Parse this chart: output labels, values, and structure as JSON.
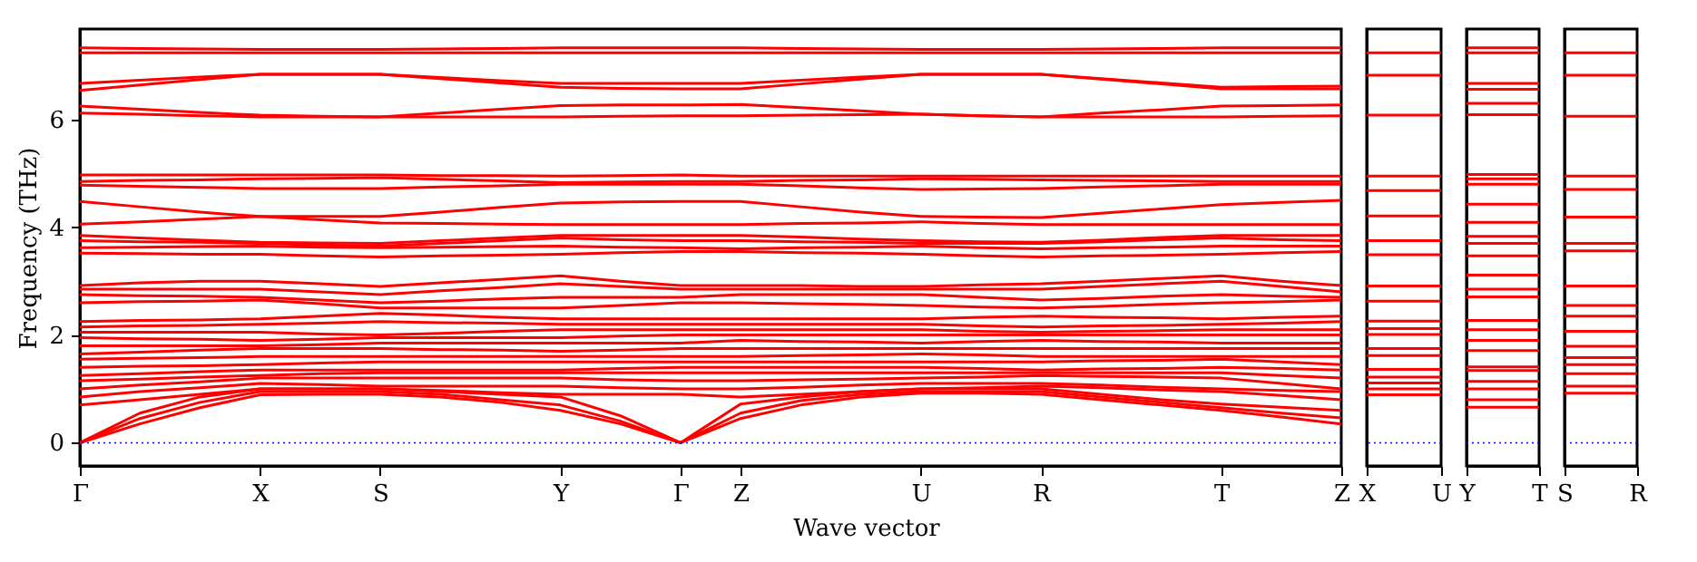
{
  "chart_data": [
    {
      "type": "line",
      "xlabel": "Wave vector",
      "ylabel": "Frequency (THz)",
      "categories": [
        "Γ",
        null,
        null,
        "X",
        null,
        "S",
        null,
        null,
        "Y",
        null,
        "Γ",
        "Z",
        null,
        null,
        "U",
        null,
        "R",
        null,
        null,
        "T",
        null,
        "Z"
      ],
      "ylim": [
        -0.43,
        7.68
      ],
      "yticks": [
        0,
        2,
        4,
        6
      ],
      "ref_lines": [
        {
          "axis": "y",
          "value": 0,
          "color": "#0000ff",
          "line_style": "dotted"
        }
      ],
      "series": [
        {
          "color": "#ff0000",
          "values": [
            0,
            0.35,
            0.65,
            0.89,
            0.9,
            0.9,
            0.85,
            0.75,
            0.6,
            0.35,
            0,
            0.45,
            0.7,
            0.85,
            0.92,
            0.92,
            0.9,
            0.8,
            0.7,
            0.6,
            0.48,
            0.35
          ]
        },
        {
          "color": "#ff0000",
          "values": [
            0,
            0.45,
            0.75,
            0.95,
            0.95,
            0.95,
            0.9,
            0.8,
            0.7,
            0.4,
            0,
            0.55,
            0.78,
            0.9,
            0.95,
            0.95,
            0.95,
            0.85,
            0.75,
            0.65,
            0.55,
            0.46
          ]
        },
        {
          "color": "#ff0000",
          "values": [
            0,
            0.55,
            0.85,
            1.0,
            1.0,
            1.0,
            0.95,
            0.9,
            0.85,
            0.5,
            0,
            0.72,
            0.85,
            0.95,
            1.0,
            1.0,
            1.0,
            0.9,
            0.8,
            0.72,
            0.66,
            0.6
          ]
        },
        {
          "color": "#ff0000",
          "values": [
            0.7,
            0.8,
            0.9,
            1.0,
            1.0,
            1.0,
            0.97,
            0.93,
            0.9,
            0.9,
            0.9,
            0.85,
            0.9,
            0.95,
            1.0,
            1.02,
            1.05,
            1.02,
            0.98,
            0.95,
            0.88,
            0.8
          ]
        },
        {
          "color": "#ff0000",
          "values": [
            0.85,
            0.95,
            1.02,
            1.1,
            1.08,
            1.05,
            1.05,
            1.05,
            1.05,
            1.02,
            1.0,
            1.0,
            1.03,
            1.07,
            1.1,
            1.1,
            1.1,
            1.07,
            1.03,
            1.0,
            0.97,
            0.95
          ]
        },
        {
          "color": "#ff0000",
          "values": [
            1.0,
            1.07,
            1.13,
            1.2,
            1.2,
            1.2,
            1.2,
            1.2,
            1.2,
            1.17,
            1.15,
            1.15,
            1.17,
            1.18,
            1.2,
            1.22,
            1.25,
            1.23,
            1.22,
            1.2,
            1.1,
            1.0
          ]
        },
        {
          "color": "#ff0000",
          "values": [
            1.15,
            1.18,
            1.22,
            1.25,
            1.28,
            1.3,
            1.3,
            1.3,
            1.3,
            1.3,
            1.3,
            1.3,
            1.3,
            1.3,
            1.3,
            1.3,
            1.3,
            1.3,
            1.3,
            1.3,
            1.25,
            1.2
          ]
        },
        {
          "color": "#ff0000",
          "values": [
            1.25,
            1.28,
            1.32,
            1.35,
            1.35,
            1.35,
            1.35,
            1.35,
            1.35,
            1.38,
            1.4,
            1.4,
            1.4,
            1.4,
            1.4,
            1.38,
            1.35,
            1.37,
            1.38,
            1.4,
            1.38,
            1.35
          ]
        },
        {
          "color": "#ff0000",
          "values": [
            1.4,
            1.42,
            1.43,
            1.45,
            1.48,
            1.5,
            1.5,
            1.5,
            1.5,
            1.5,
            1.5,
            1.5,
            1.5,
            1.5,
            1.5,
            1.5,
            1.5,
            1.52,
            1.53,
            1.55,
            1.5,
            1.45
          ]
        },
        {
          "color": "#ff0000",
          "values": [
            1.55,
            1.57,
            1.58,
            1.6,
            1.6,
            1.6,
            1.6,
            1.6,
            1.6,
            1.6,
            1.6,
            1.6,
            1.62,
            1.63,
            1.65,
            1.63,
            1.6,
            1.6,
            1.6,
            1.6,
            1.6,
            1.6
          ]
        },
        {
          "color": "#ff0000",
          "values": [
            1.65,
            1.68,
            1.72,
            1.75,
            1.75,
            1.75,
            1.73,
            1.72,
            1.7,
            1.72,
            1.75,
            1.75,
            1.75,
            1.75,
            1.75,
            1.75,
            1.75,
            1.75,
            1.75,
            1.75,
            1.75,
            1.75
          ]
        },
        {
          "color": "#ff0000",
          "values": [
            1.8,
            1.8,
            1.8,
            1.8,
            1.82,
            1.85,
            1.85,
            1.85,
            1.85,
            1.85,
            1.85,
            1.9,
            1.88,
            1.87,
            1.85,
            1.88,
            1.9,
            1.88,
            1.87,
            1.85,
            1.85,
            1.85
          ]
        },
        {
          "color": "#ff0000",
          "values": [
            1.95,
            1.93,
            1.92,
            1.9,
            1.92,
            1.95,
            1.95,
            1.95,
            1.95,
            1.98,
            2.0,
            2.0,
            2.0,
            2.0,
            2.0,
            2.0,
            2.0,
            2.0,
            2.0,
            2.0,
            2.0,
            2.0
          ]
        },
        {
          "color": "#ff0000",
          "values": [
            2.05,
            2.05,
            2.05,
            2.05,
            2.02,
            2.0,
            2.03,
            2.07,
            2.1,
            2.1,
            2.1,
            2.1,
            2.1,
            2.1,
            2.1,
            2.07,
            2.05,
            2.07,
            2.08,
            2.1,
            2.1,
            2.1
          ]
        },
        {
          "color": "#ff0000",
          "values": [
            2.15,
            2.17,
            2.18,
            2.2,
            2.22,
            2.25,
            2.23,
            2.22,
            2.2,
            2.2,
            2.2,
            2.2,
            2.2,
            2.2,
            2.2,
            2.17,
            2.15,
            2.17,
            2.18,
            2.2,
            2.22,
            2.25
          ]
        },
        {
          "color": "#ff0000",
          "values": [
            2.25,
            2.27,
            2.28,
            2.3,
            2.35,
            2.4,
            2.37,
            2.33,
            2.3,
            2.3,
            2.3,
            2.3,
            2.3,
            2.3,
            2.3,
            2.33,
            2.35,
            2.33,
            2.32,
            2.3,
            2.33,
            2.35
          ]
        },
        {
          "color": "#ff0000",
          "values": [
            2.6,
            2.62,
            2.63,
            2.65,
            2.58,
            2.5,
            2.5,
            2.5,
            2.5,
            2.55,
            2.6,
            2.6,
            2.58,
            2.57,
            2.55,
            2.52,
            2.5,
            2.53,
            2.57,
            2.6,
            2.62,
            2.65
          ]
        },
        {
          "color": "#ff0000",
          "values": [
            2.75,
            2.73,
            2.72,
            2.7,
            2.65,
            2.6,
            2.63,
            2.67,
            2.7,
            2.7,
            2.7,
            2.75,
            2.75,
            2.75,
            2.75,
            2.7,
            2.65,
            2.68,
            2.72,
            2.75,
            2.72,
            2.7
          ]
        },
        {
          "color": "#ff0000",
          "values": [
            2.85,
            2.85,
            2.85,
            2.85,
            2.8,
            2.75,
            2.82,
            2.88,
            2.95,
            2.9,
            2.85,
            2.85,
            2.85,
            2.85,
            2.85,
            2.85,
            2.85,
            2.9,
            2.95,
            3.0,
            2.9,
            2.8
          ]
        },
        {
          "color": "#ff0000",
          "values": [
            2.92,
            2.97,
            3.0,
            3.0,
            2.95,
            2.9,
            2.97,
            3.03,
            3.1,
            3.0,
            2.92,
            2.92,
            2.92,
            2.9,
            2.9,
            2.93,
            2.95,
            3.0,
            3.05,
            3.1,
            3.0,
            2.92
          ]
        },
        {
          "color": "#ff0000",
          "values": [
            3.52,
            3.51,
            3.5,
            3.5,
            3.47,
            3.45,
            3.47,
            3.48,
            3.5,
            3.53,
            3.55,
            3.55,
            3.53,
            3.52,
            3.5,
            3.47,
            3.45,
            3.47,
            3.48,
            3.5,
            3.53,
            3.55
          ]
        },
        {
          "color": "#ff0000",
          "values": [
            3.62,
            3.63,
            3.64,
            3.65,
            3.63,
            3.62,
            3.63,
            3.64,
            3.65,
            3.63,
            3.62,
            3.6,
            3.62,
            3.63,
            3.65,
            3.62,
            3.6,
            3.62,
            3.63,
            3.65,
            3.65,
            3.65
          ]
        },
        {
          "color": "#ff0000",
          "values": [
            3.75,
            3.73,
            3.72,
            3.7,
            3.67,
            3.65,
            3.7,
            3.75,
            3.8,
            3.77,
            3.75,
            3.75,
            3.73,
            3.72,
            3.7,
            3.7,
            3.7,
            3.73,
            3.77,
            3.8,
            3.77,
            3.75
          ]
        },
        {
          "color": "#ff0000",
          "values": [
            3.85,
            3.8,
            3.76,
            3.72,
            3.71,
            3.7,
            3.75,
            3.8,
            3.85,
            3.85,
            3.85,
            3.85,
            3.82,
            3.78,
            3.75,
            3.73,
            3.72,
            3.76,
            3.81,
            3.85,
            3.85,
            3.85
          ]
        },
        {
          "color": "#ff0000",
          "values": [
            4.06,
            4.1,
            4.15,
            4.2,
            4.14,
            4.08,
            4.07,
            4.06,
            4.05,
            4.05,
            4.05,
            4.05,
            4.07,
            4.08,
            4.1,
            4.07,
            4.05,
            4.05,
            4.05,
            4.05,
            4.05,
            4.05
          ]
        },
        {
          "color": "#ff0000",
          "values": [
            4.48,
            4.38,
            4.28,
            4.2,
            4.2,
            4.2,
            4.28,
            4.37,
            4.45,
            4.47,
            4.48,
            4.48,
            4.38,
            4.28,
            4.2,
            4.19,
            4.18,
            4.26,
            4.34,
            4.42,
            4.46,
            4.5
          ]
        },
        {
          "color": "#ff0000",
          "values": [
            4.78,
            4.76,
            4.74,
            4.72,
            4.72,
            4.72,
            4.75,
            4.77,
            4.8,
            4.8,
            4.8,
            4.8,
            4.77,
            4.73,
            4.7,
            4.71,
            4.72,
            4.75,
            4.77,
            4.8,
            4.8,
            4.8
          ]
        },
        {
          "color": "#ff0000",
          "values": [
            4.85,
            4.87,
            4.88,
            4.9,
            4.91,
            4.92,
            4.89,
            4.86,
            4.83,
            4.84,
            4.85,
            4.85,
            4.87,
            4.88,
            4.9,
            4.89,
            4.88,
            4.87,
            4.86,
            4.85,
            4.85,
            4.85
          ]
        },
        {
          "color": "#ff0000",
          "values": [
            4.97,
            4.97,
            4.97,
            4.97,
            4.97,
            4.97,
            4.96,
            4.96,
            4.95,
            4.96,
            4.97,
            4.95,
            4.95,
            4.95,
            4.95,
            4.95,
            4.95,
            4.95,
            4.95,
            4.95,
            4.95,
            4.95
          ]
        },
        {
          "color": "#ff0000",
          "values": [
            6.12,
            6.1,
            6.07,
            6.05,
            6.05,
            6.05,
            6.05,
            6.05,
            6.05,
            6.06,
            6.07,
            6.07,
            6.08,
            6.09,
            6.1,
            6.07,
            6.05,
            6.05,
            6.05,
            6.05,
            6.06,
            6.07
          ]
        },
        {
          "color": "#ff0000",
          "values": [
            6.25,
            6.19,
            6.13,
            6.08,
            6.06,
            6.05,
            6.12,
            6.19,
            6.26,
            6.27,
            6.27,
            6.28,
            6.22,
            6.16,
            6.1,
            6.07,
            6.05,
            6.12,
            6.18,
            6.25,
            6.26,
            6.27
          ]
        },
        {
          "color": "#ff0000",
          "values": [
            6.54,
            6.64,
            6.74,
            6.84,
            6.84,
            6.84,
            6.76,
            6.68,
            6.6,
            6.58,
            6.57,
            6.57,
            6.66,
            6.75,
            6.84,
            6.84,
            6.84,
            6.75,
            6.66,
            6.57,
            6.57,
            6.57
          ]
        },
        {
          "color": "#ff0000",
          "values": [
            6.67,
            6.73,
            6.79,
            6.84,
            6.84,
            6.84,
            6.78,
            6.72,
            6.67,
            6.67,
            6.67,
            6.67,
            6.73,
            6.79,
            6.84,
            6.84,
            6.84,
            6.76,
            6.68,
            6.6,
            6.61,
            6.62
          ]
        },
        {
          "color": "#ff0000",
          "values": [
            7.24,
            7.24,
            7.24,
            7.24,
            7.24,
            7.24,
            7.24,
            7.24,
            7.24,
            7.24,
            7.24,
            7.24,
            7.24,
            7.24,
            7.24,
            7.24,
            7.24,
            7.24,
            7.24,
            7.24,
            7.24,
            7.24
          ]
        },
        {
          "color": "#ff0000",
          "values": [
            7.33,
            7.32,
            7.31,
            7.3,
            7.3,
            7.3,
            7.31,
            7.32,
            7.33,
            7.33,
            7.33,
            7.33,
            7.32,
            7.31,
            7.3,
            7.3,
            7.3,
            7.31,
            7.32,
            7.33,
            7.33,
            7.33
          ]
        }
      ]
    },
    {
      "type": "line",
      "categories": [
        "X",
        "U"
      ],
      "ylim": [
        -0.43,
        7.68
      ],
      "yticks": [
        0,
        2,
        4,
        6
      ],
      "tick_labels": "x",
      "ref_lines": [
        {
          "axis": "y",
          "value": 0,
          "color": "#0000ff",
          "line_style": "dotted"
        }
      ],
      "series": [
        {
          "color": "#ff0000",
          "values": [
            7.24,
            7.24
          ]
        },
        {
          "color": "#ff0000",
          "values": [
            6.82,
            6.82
          ]
        },
        {
          "color": "#ff0000",
          "values": [
            6.08,
            6.08
          ]
        },
        {
          "color": "#ff0000",
          "values": [
            4.95,
            4.95
          ]
        },
        {
          "color": "#ff0000",
          "values": [
            4.68,
            4.68
          ]
        },
        {
          "color": "#ff0000",
          "values": [
            4.21,
            4.21
          ]
        },
        {
          "color": "#ff0000",
          "values": [
            3.75,
            3.75
          ]
        },
        {
          "color": "#ff0000",
          "values": [
            3.49,
            3.49
          ]
        },
        {
          "color": "#ff0000",
          "values": [
            2.91,
            2.91
          ]
        },
        {
          "color": "#ff0000",
          "values": [
            2.63,
            2.63
          ]
        },
        {
          "color": "#ff0000",
          "values": [
            2.26,
            2.26
          ]
        },
        {
          "color": "#ff0000",
          "values": [
            2.12,
            2.12
          ]
        },
        {
          "color": "#ff0000",
          "values": [
            2.01,
            2.01
          ]
        },
        {
          "color": "#ff0000",
          "values": [
            1.75,
            1.75
          ]
        },
        {
          "color": "#ff0000",
          "values": [
            1.62,
            1.62
          ]
        },
        {
          "color": "#ff0000",
          "values": [
            1.36,
            1.36
          ]
        },
        {
          "color": "#ff0000",
          "values": [
            1.22,
            1.22
          ]
        },
        {
          "color": "#ff0000",
          "values": [
            1.11,
            1.11
          ]
        },
        {
          "color": "#ff0000",
          "values": [
            1.0,
            1.0
          ]
        },
        {
          "color": "#ff0000",
          "values": [
            0.89,
            0.89
          ]
        }
      ]
    },
    {
      "type": "line",
      "categories": [
        "Y",
        "T"
      ],
      "ylim": [
        -0.43,
        7.68
      ],
      "yticks": [
        0,
        2,
        4,
        6
      ],
      "tick_labels": "x",
      "ref_lines": [
        {
          "axis": "y",
          "value": 0,
          "color": "#0000ff",
          "line_style": "dotted"
        }
      ],
      "series": [
        {
          "color": "#ff0000",
          "values": [
            7.33,
            7.33
          ]
        },
        {
          "color": "#ff0000",
          "values": [
            7.24,
            7.24
          ]
        },
        {
          "color": "#ff0000",
          "values": [
            6.67,
            6.67
          ]
        },
        {
          "color": "#ff0000",
          "values": [
            6.56,
            6.56
          ]
        },
        {
          "color": "#ff0000",
          "values": [
            6.3,
            6.3
          ]
        },
        {
          "color": "#ff0000",
          "values": [
            6.09,
            6.09
          ]
        },
        {
          "color": "#ff0000",
          "values": [
            4.98,
            4.98
          ]
        },
        {
          "color": "#ff0000",
          "values": [
            4.9,
            4.9
          ]
        },
        {
          "color": "#ff0000",
          "values": [
            4.8,
            4.8
          ]
        },
        {
          "color": "#ff0000",
          "values": [
            4.43,
            4.43
          ]
        },
        {
          "color": "#ff0000",
          "values": [
            4.09,
            4.09
          ]
        },
        {
          "color": "#ff0000",
          "values": [
            3.83,
            3.83
          ]
        },
        {
          "color": "#ff0000",
          "values": [
            3.7,
            3.7
          ]
        },
        {
          "color": "#ff0000",
          "values": [
            3.47,
            3.47
          ]
        },
        {
          "color": "#ff0000",
          "values": [
            3.11,
            3.11
          ]
        },
        {
          "color": "#ff0000",
          "values": [
            2.85,
            2.85
          ]
        },
        {
          "color": "#ff0000",
          "values": [
            2.71,
            2.71
          ]
        },
        {
          "color": "#ff0000",
          "values": [
            2.27,
            2.27
          ]
        },
        {
          "color": "#ff0000",
          "values": [
            2.1,
            2.1
          ]
        },
        {
          "color": "#ff0000",
          "values": [
            1.9,
            1.9
          ]
        },
        {
          "color": "#ff0000",
          "values": [
            1.71,
            1.71
          ]
        },
        {
          "color": "#ff0000",
          "values": [
            1.41,
            1.41
          ]
        },
        {
          "color": "#ff0000",
          "values": [
            1.34,
            1.34
          ]
        },
        {
          "color": "#ff0000",
          "values": [
            1.14,
            1.14
          ]
        },
        {
          "color": "#ff0000",
          "values": [
            1.0,
            1.0
          ]
        },
        {
          "color": "#ff0000",
          "values": [
            0.8,
            0.8
          ]
        },
        {
          "color": "#ff0000",
          "values": [
            0.66,
            0.66
          ]
        }
      ]
    },
    {
      "type": "line",
      "categories": [
        "S",
        "R"
      ],
      "ylim": [
        -0.43,
        7.68
      ],
      "yticks": [
        0,
        2,
        4,
        6
      ],
      "tick_labels": "x",
      "ref_lines": [
        {
          "axis": "y",
          "value": 0,
          "color": "#0000ff",
          "line_style": "dotted"
        }
      ],
      "series": [
        {
          "color": "#ff0000",
          "values": [
            7.24,
            7.24
          ]
        },
        {
          "color": "#ff0000",
          "values": [
            6.82,
            6.82
          ]
        },
        {
          "color": "#ff0000",
          "values": [
            6.06,
            6.06
          ]
        },
        {
          "color": "#ff0000",
          "values": [
            4.95,
            4.95
          ]
        },
        {
          "color": "#ff0000",
          "values": [
            4.7,
            4.7
          ]
        },
        {
          "color": "#ff0000",
          "values": [
            4.19,
            4.19
          ]
        },
        {
          "color": "#ff0000",
          "values": [
            3.7,
            3.7
          ]
        },
        {
          "color": "#ff0000",
          "values": [
            3.56,
            3.56
          ]
        },
        {
          "color": "#ff0000",
          "values": [
            2.91,
            2.91
          ]
        },
        {
          "color": "#ff0000",
          "values": [
            2.55,
            2.55
          ]
        },
        {
          "color": "#ff0000",
          "values": [
            2.35,
            2.35
          ]
        },
        {
          "color": "#ff0000",
          "values": [
            2.07,
            2.07
          ]
        },
        {
          "color": "#ff0000",
          "values": [
            1.79,
            1.79
          ]
        },
        {
          "color": "#ff0000",
          "values": [
            1.58,
            1.58
          ]
        },
        {
          "color": "#ff0000",
          "values": [
            1.45,
            1.45
          ]
        },
        {
          "color": "#ff0000",
          "values": [
            1.28,
            1.28
          ]
        },
        {
          "color": "#ff0000",
          "values": [
            1.05,
            1.05
          ]
        },
        {
          "color": "#ff0000",
          "values": [
            0.92,
            0.92
          ]
        }
      ]
    }
  ]
}
